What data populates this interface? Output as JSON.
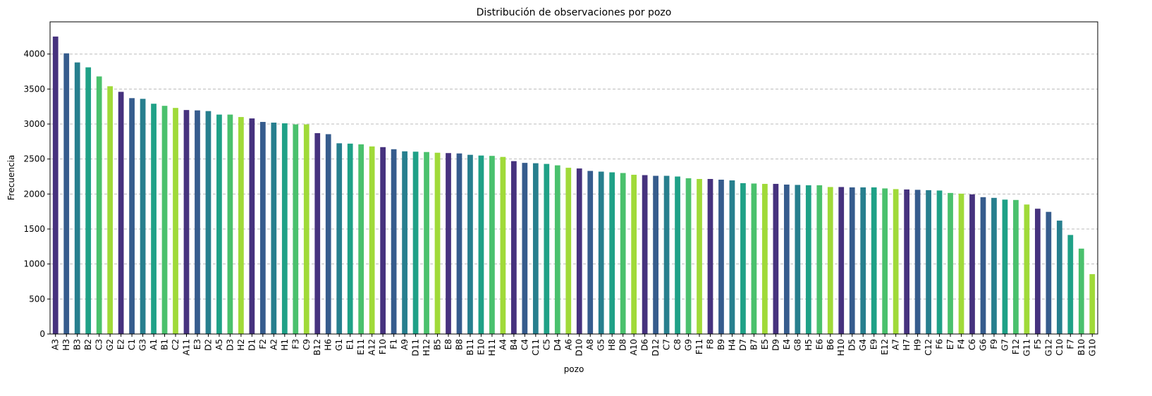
{
  "chart_data": {
    "type": "bar",
    "title": "Distribución de observaciones por pozo",
    "x_label": "pozo",
    "y_label": "Frecuencia",
    "categories": [
      "A3",
      "H3",
      "B3",
      "B2",
      "C3",
      "G2",
      "E2",
      "C1",
      "G3",
      "A1",
      "B1",
      "C2",
      "A11",
      "E3",
      "D2",
      "A5",
      "D3",
      "H2",
      "D1",
      "F2",
      "A2",
      "H1",
      "F3",
      "C9",
      "B12",
      "H6",
      "G1",
      "E1",
      "E11",
      "A12",
      "F10",
      "F1",
      "A9",
      "D11",
      "H12",
      "B5",
      "E8",
      "B8",
      "B11",
      "E10",
      "H11",
      "A4",
      "B4",
      "C4",
      "C11",
      "C5",
      "D4",
      "A6",
      "D10",
      "A8",
      "G5",
      "H8",
      "D8",
      "A10",
      "D6",
      "D12",
      "C7",
      "C8",
      "G9",
      "F11",
      "F8",
      "B9",
      "H4",
      "D7",
      "B7",
      "E5",
      "D9",
      "E4",
      "G8",
      "H5",
      "E6",
      "B6",
      "H10",
      "D5",
      "G4",
      "E9",
      "E12",
      "A7",
      "H7",
      "H9",
      "C12",
      "F6",
      "E7",
      "F4",
      "C6",
      "G6",
      "F9",
      "G7",
      "F12",
      "G11",
      "F5",
      "G12",
      "C10",
      "F7",
      "B10",
      "G10"
    ],
    "values": [
      4250,
      4010,
      3880,
      3810,
      3680,
      3540,
      3460,
      3370,
      3360,
      3290,
      3260,
      3230,
      3200,
      3195,
      3185,
      3135,
      3135,
      3100,
      3080,
      3030,
      3020,
      3010,
      2995,
      2995,
      2870,
      2855,
      2725,
      2720,
      2710,
      2680,
      2670,
      2640,
      2610,
      2605,
      2600,
      2590,
      2585,
      2580,
      2560,
      2550,
      2545,
      2530,
      2470,
      2445,
      2440,
      2430,
      2410,
      2375,
      2365,
      2330,
      2320,
      2310,
      2300,
      2275,
      2270,
      2260,
      2260,
      2250,
      2225,
      2215,
      2215,
      2205,
      2195,
      2155,
      2150,
      2145,
      2145,
      2135,
      2130,
      2125,
      2125,
      2100,
      2100,
      2095,
      2095,
      2095,
      2080,
      2070,
      2065,
      2060,
      2055,
      2050,
      2015,
      2005,
      1995,
      1955,
      1945,
      1920,
      1915,
      1850,
      1790,
      1745,
      1620,
      1415,
      1220,
      855
    ],
    "colors": [
      "#46327e",
      "#365c8d",
      "#277f8e",
      "#1fa187",
      "#4ac16d",
      "#a0da39"
    ],
    "ylim": [
      0,
      4460
    ],
    "yticks": [
      0,
      500,
      1000,
      1500,
      2000,
      2500,
      3000,
      3500,
      4000
    ],
    "grid": true
  }
}
